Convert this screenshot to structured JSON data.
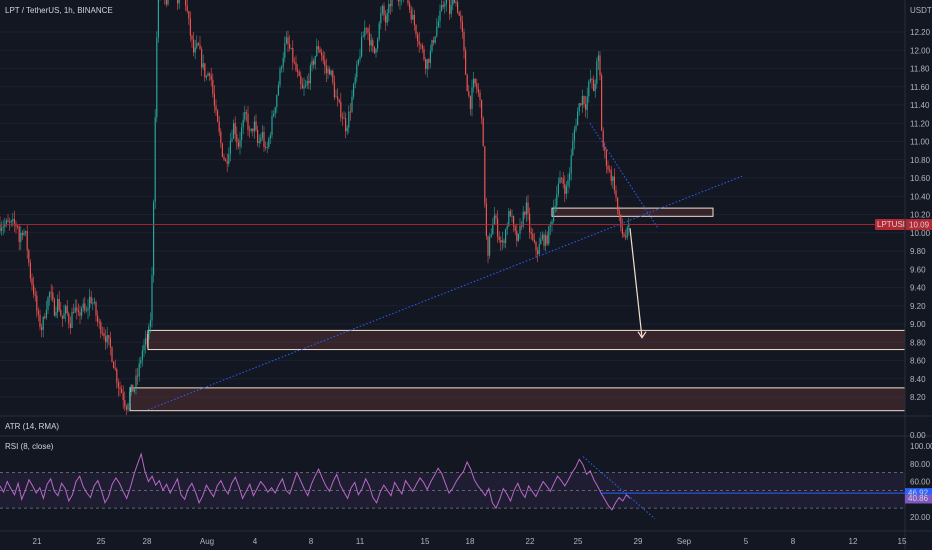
{
  "header": {
    "title": "LPT / TetherUS, 1h, BINANCE",
    "currency": "USDT"
  },
  "price_tag": {
    "symbol": "LPTUSDT",
    "value": "10.09"
  },
  "atr": {
    "label": "ATR (14, RMA)",
    "axis_zero": "0.00"
  },
  "rsi": {
    "label": "RSI (8, close)",
    "current": "46.92",
    "second": "40.86",
    "levels": [
      100,
      80,
      60,
      40,
      20
    ],
    "level_labels": [
      "100.00",
      "80.00",
      "60.00",
      "40.00",
      "20.00"
    ]
  },
  "x_axis": {
    "labels": [
      "21",
      "25",
      "28",
      "Aug",
      "4",
      "8",
      "11",
      "15",
      "18",
      "22",
      "25",
      "29",
      "Sep",
      "5",
      "8",
      "12",
      "15"
    ]
  },
  "chart_data": {
    "type": "candlestick",
    "title": "LPT / TetherUS, 1h, BINANCE",
    "y_ticks": [
      12.2,
      12.0,
      11.8,
      11.6,
      11.4,
      11.2,
      11.0,
      10.8,
      10.6,
      10.4,
      10.2,
      10.0,
      9.8,
      9.6,
      9.4,
      9.2,
      9.0,
      8.8,
      8.6,
      8.4,
      8.2
    ],
    "y_tick_labels": [
      "12.20",
      "12.00",
      "11.80",
      "11.60",
      "11.40",
      "11.20",
      "11.00",
      "10.80",
      "10.60",
      "10.40",
      "10.20",
      "10.00",
      "9.80",
      "9.60",
      "9.40",
      "9.20",
      "9.00",
      "8.80",
      "8.60",
      "8.40",
      "8.20"
    ],
    "ylim": [
      8.0,
      12.5
    ],
    "last_price": 10.09,
    "price_path": [
      [
        18,
        9.85
      ],
      [
        22,
        10.05
      ],
      [
        26,
        9.95
      ],
      [
        30,
        9.55
      ],
      [
        34,
        9.35
      ],
      [
        38,
        9.05
      ],
      [
        42,
        8.95
      ],
      [
        46,
        9.2
      ],
      [
        50,
        9.35
      ],
      [
        54,
        9.15
      ],
      [
        58,
        9.25
      ],
      [
        62,
        9.05
      ],
      [
        66,
        9.15
      ],
      [
        70,
        9.0
      ],
      [
        74,
        9.2
      ],
      [
        78,
        9.05
      ],
      [
        82,
        9.2
      ],
      [
        86,
        9.1
      ],
      [
        90,
        9.3
      ],
      [
        94,
        9.2
      ],
      [
        98,
        9.0
      ],
      [
        102,
        8.95
      ],
      [
        106,
        8.85
      ],
      [
        110,
        8.75
      ],
      [
        114,
        8.55
      ],
      [
        118,
        8.35
      ],
      [
        122,
        8.25
      ],
      [
        126,
        8.1
      ],
      [
        130,
        8.25
      ],
      [
        134,
        8.3
      ],
      [
        138,
        8.45
      ],
      [
        142,
        8.7
      ],
      [
        146,
        8.8
      ],
      [
        150,
        8.95
      ],
      [
        152,
        9.5
      ],
      [
        154,
        10.6
      ],
      [
        156,
        11.8
      ],
      [
        158,
        12.6
      ],
      [
        162,
        12.8
      ],
      [
        166,
        12.4
      ],
      [
        170,
        12.9
      ],
      [
        174,
        12.7
      ],
      [
        178,
        12.55
      ],
      [
        182,
        12.75
      ],
      [
        186,
        12.5
      ],
      [
        190,
        12.2
      ],
      [
        194,
        11.95
      ],
      [
        198,
        12.05
      ],
      [
        202,
        11.85
      ],
      [
        206,
        11.7
      ],
      [
        210,
        11.8
      ],
      [
        214,
        11.4
      ],
      [
        218,
        11.15
      ],
      [
        222,
        10.9
      ],
      [
        226,
        10.75
      ],
      [
        230,
        11.0
      ],
      [
        234,
        11.2
      ],
      [
        238,
        10.95
      ],
      [
        242,
        11.15
      ],
      [
        246,
        11.3
      ],
      [
        250,
        11.05
      ],
      [
        254,
        11.2
      ],
      [
        258,
        10.95
      ],
      [
        262,
        11.1
      ],
      [
        266,
        10.85
      ],
      [
        270,
        11.1
      ],
      [
        274,
        11.35
      ],
      [
        278,
        11.6
      ],
      [
        282,
        11.9
      ],
      [
        286,
        12.1
      ],
      [
        290,
        12.0
      ],
      [
        294,
        11.85
      ],
      [
        298,
        11.7
      ],
      [
        302,
        11.55
      ],
      [
        306,
        11.6
      ],
      [
        310,
        11.75
      ],
      [
        314,
        11.9
      ],
      [
        318,
        12.05
      ],
      [
        322,
        11.95
      ],
      [
        326,
        11.75
      ],
      [
        330,
        11.8
      ],
      [
        334,
        11.55
      ],
      [
        338,
        11.4
      ],
      [
        342,
        11.3
      ],
      [
        346,
        11.15
      ],
      [
        350,
        11.35
      ],
      [
        354,
        11.6
      ],
      [
        358,
        11.85
      ],
      [
        362,
        12.1
      ],
      [
        366,
        12.3
      ],
      [
        370,
        12.1
      ],
      [
        374,
        11.95
      ],
      [
        378,
        12.2
      ],
      [
        382,
        12.45
      ],
      [
        386,
        12.3
      ],
      [
        390,
        12.5
      ],
      [
        394,
        12.7
      ],
      [
        398,
        12.55
      ],
      [
        402,
        12.7
      ],
      [
        406,
        12.6
      ],
      [
        410,
        12.45
      ],
      [
        414,
        12.3
      ],
      [
        418,
        12.15
      ],
      [
        422,
        12.0
      ],
      [
        426,
        11.85
      ],
      [
        430,
        11.95
      ],
      [
        434,
        12.15
      ],
      [
        438,
        12.3
      ],
      [
        442,
        12.45
      ],
      [
        446,
        12.6
      ],
      [
        450,
        12.4
      ],
      [
        454,
        12.6
      ],
      [
        458,
        12.45
      ],
      [
        462,
        12.2
      ],
      [
        466,
        11.7
      ],
      [
        470,
        11.4
      ],
      [
        474,
        11.65
      ],
      [
        478,
        11.55
      ],
      [
        482,
        11.3
      ],
      [
        484,
        10.6
      ],
      [
        486,
        10.0
      ],
      [
        488,
        9.7
      ],
      [
        490,
        9.95
      ],
      [
        494,
        10.2
      ],
      [
        498,
        10.0
      ],
      [
        502,
        9.85
      ],
      [
        506,
        10.05
      ],
      [
        510,
        10.25
      ],
      [
        514,
        10.0
      ],
      [
        518,
        9.9
      ],
      [
        522,
        10.15
      ],
      [
        526,
        10.3
      ],
      [
        530,
        10.0
      ],
      [
        534,
        9.85
      ],
      [
        538,
        9.8
      ],
      [
        542,
        9.95
      ],
      [
        546,
        9.9
      ],
      [
        550,
        10.05
      ],
      [
        554,
        10.3
      ],
      [
        558,
        10.5
      ],
      [
        562,
        10.6
      ],
      [
        566,
        10.45
      ],
      [
        570,
        10.7
      ],
      [
        574,
        11.1
      ],
      [
        578,
        11.35
      ],
      [
        582,
        11.5
      ],
      [
        586,
        11.4
      ],
      [
        590,
        11.7
      ],
      [
        594,
        11.55
      ],
      [
        598,
        11.95
      ],
      [
        600,
        11.7
      ],
      [
        602,
        11.0
      ],
      [
        606,
        10.8
      ],
      [
        610,
        10.65
      ],
      [
        614,
        10.55
      ],
      [
        618,
        10.2
      ],
      [
        622,
        10.0
      ],
      [
        626,
        9.95
      ],
      [
        630,
        10.09
      ]
    ],
    "zones": [
      {
        "y_top": 10.27,
        "y_bottom": 10.18,
        "x_start": 552,
        "x_end": 713
      },
      {
        "y_top": 8.93,
        "y_bottom": 8.72,
        "x_start": 148,
        "x_end": 905
      },
      {
        "y_top": 8.3,
        "y_bottom": 8.05,
        "x_start": 130,
        "x_end": 905
      }
    ],
    "trendlines": [
      {
        "from": [
          148,
          8.06
        ],
        "to": [
          742,
          10.62
        ]
      },
      {
        "from": [
          590,
          11.2
        ],
        "to": [
          658,
          10.05
        ]
      }
    ],
    "arrow": {
      "from": [
        630,
        10.05
      ],
      "to": [
        642,
        8.85
      ]
    }
  },
  "rsi_data": {
    "overbought": 70,
    "oversold": 30,
    "values": [
      55,
      48,
      60,
      52,
      45,
      58,
      40,
      50,
      62,
      55,
      47,
      53,
      41,
      57,
      63,
      49,
      44,
      58,
      52,
      38,
      45,
      60,
      66,
      54,
      47,
      42,
      55,
      61,
      50,
      36,
      43,
      57,
      64,
      58,
      49,
      41,
      53,
      68,
      80,
      91,
      72,
      60,
      66,
      56,
      61,
      50,
      57,
      47,
      55,
      63,
      45,
      40,
      52,
      58,
      48,
      36,
      44,
      56,
      49,
      43,
      55,
      61,
      52,
      46,
      58,
      65,
      54,
      41,
      49,
      57,
      44,
      52,
      60,
      55,
      48,
      53,
      47,
      56,
      63,
      50,
      46,
      58,
      70,
      61,
      52,
      44,
      57,
      66,
      74,
      64,
      55,
      49,
      60,
      68,
      56,
      48,
      41,
      53,
      59,
      45,
      52,
      63,
      55,
      42,
      36,
      48,
      56,
      50,
      44,
      59,
      52,
      46,
      61,
      55,
      49,
      57,
      64,
      59,
      51,
      60,
      67,
      75,
      69,
      58,
      47,
      52,
      60,
      66,
      71,
      82,
      74,
      62,
      55,
      50,
      44,
      52,
      36,
      30,
      40,
      52,
      46,
      38,
      50,
      58,
      48,
      42,
      55,
      49,
      43,
      52,
      60,
      55,
      49,
      58,
      66,
      61,
      55,
      62,
      70,
      76,
      85,
      79,
      68,
      72,
      62,
      55,
      47,
      40,
      33,
      28,
      36,
      42,
      38,
      45,
      41
    ]
  }
}
